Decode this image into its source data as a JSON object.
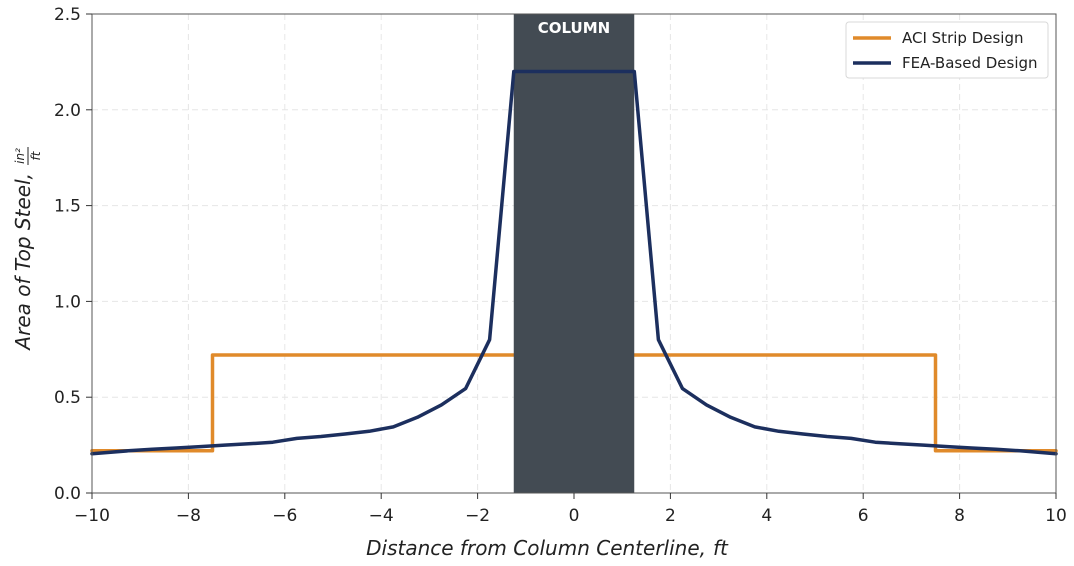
{
  "chart_data": {
    "type": "line",
    "xlabel": "Distance from Column Centerline,",
    "xlabel_unit": "ft",
    "ylabel": "Area of Top Steel,",
    "ylabel_unit_num": "in²",
    "ylabel_unit_den": "ft",
    "xlim": [
      -10,
      10
    ],
    "ylim": [
      0,
      2.5
    ],
    "xticks": [
      -10,
      -8,
      -6,
      -4,
      -2,
      0,
      2,
      4,
      6,
      8,
      10
    ],
    "xtick_labels": [
      "−10",
      "−8",
      "−6",
      "−4",
      "−2",
      "0",
      "2",
      "4",
      "6",
      "8",
      "10"
    ],
    "yticks": [
      0,
      0.5,
      1.0,
      1.5,
      2.0,
      2.5
    ],
    "ytick_labels": [
      "0.0",
      "0.5",
      "1.0",
      "1.5",
      "2.0",
      "2.5"
    ],
    "grid": true,
    "legend_position": "top-right",
    "column": {
      "label": "COLUMN",
      "x_range": [
        -1.25,
        1.25
      ],
      "color": "#434b53"
    },
    "series": [
      {
        "name": "ACI Strip Design",
        "color": "#e08a2a",
        "x": [
          -10,
          -7.5,
          -7.5,
          -1.25,
          1.25,
          7.5,
          7.5,
          10
        ],
        "y": [
          0.22,
          0.22,
          0.72,
          0.72,
          0.72,
          0.72,
          0.22,
          0.22
        ]
      },
      {
        "name": "FEA-Based Design",
        "color": "#1c2f5e",
        "x": [
          -10,
          -9.25,
          -8.75,
          -8.25,
          -7.75,
          -7.25,
          -6.75,
          -6.25,
          -5.75,
          -5.25,
          -4.75,
          -4.25,
          -3.75,
          -3.25,
          -2.75,
          -2.25,
          -1.75,
          -1.25,
          1.25,
          1.75,
          2.25,
          2.75,
          3.25,
          3.75,
          4.25,
          4.75,
          5.25,
          5.75,
          6.25,
          6.75,
          7.25,
          7.75,
          8.25,
          8.75,
          9.25,
          10
        ],
        "y": [
          0.205,
          0.22,
          0.228,
          0.235,
          0.242,
          0.25,
          0.257,
          0.265,
          0.285,
          0.295,
          0.308,
          0.322,
          0.345,
          0.395,
          0.46,
          0.545,
          0.8,
          2.2,
          2.2,
          0.8,
          0.545,
          0.46,
          0.395,
          0.345,
          0.322,
          0.308,
          0.295,
          0.285,
          0.265,
          0.257,
          0.25,
          0.242,
          0.235,
          0.228,
          0.22,
          0.205
        ]
      }
    ]
  }
}
